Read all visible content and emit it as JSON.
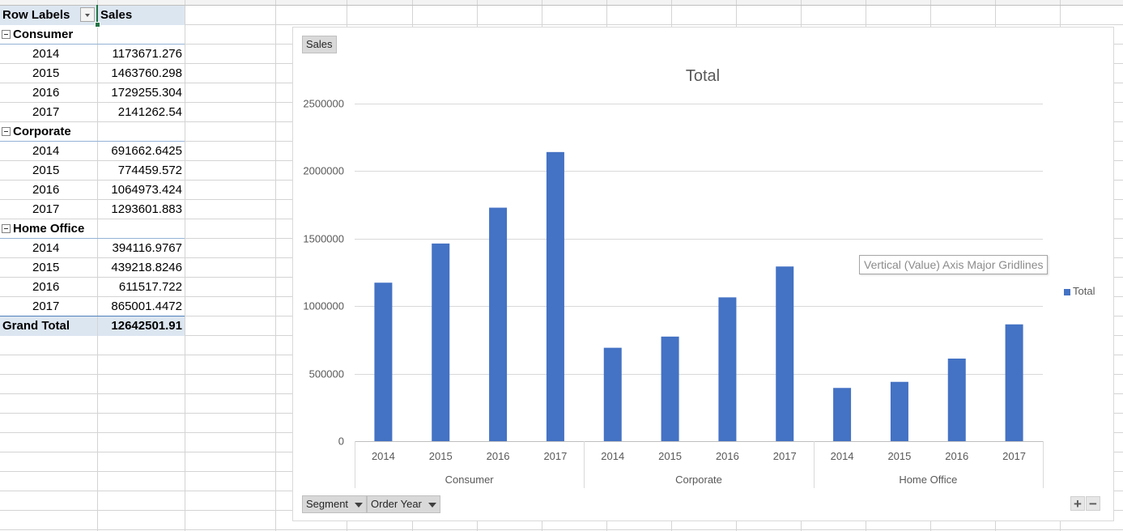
{
  "pivot": {
    "header_row_labels": "Row Labels",
    "header_sales": "Sales",
    "groups": [
      {
        "name": "Consumer",
        "rows": [
          {
            "year": "2014",
            "value": "1173671.276"
          },
          {
            "year": "2015",
            "value": "1463760.298"
          },
          {
            "year": "2016",
            "value": "1729255.304"
          },
          {
            "year": "2017",
            "value": "2141262.54"
          }
        ]
      },
      {
        "name": "Corporate",
        "rows": [
          {
            "year": "2014",
            "value": "691662.6425"
          },
          {
            "year": "2015",
            "value": "774459.572"
          },
          {
            "year": "2016",
            "value": "1064973.424"
          },
          {
            "year": "2017",
            "value": "1293601.883"
          }
        ]
      },
      {
        "name": "Home Office",
        "rows": [
          {
            "year": "2014",
            "value": "394116.9767"
          },
          {
            "year": "2015",
            "value": "439218.8246"
          },
          {
            "year": "2016",
            "value": "611517.722"
          },
          {
            "year": "2017",
            "value": "865001.4472"
          }
        ]
      }
    ],
    "grand_total_label": "Grand Total",
    "grand_total_value": "12642501.91"
  },
  "chart": {
    "value_field_button": "Sales",
    "axis_field_buttons": [
      "Segment",
      "Order Year"
    ],
    "tooltip": "Vertical (Value) Axis Major Gridlines",
    "zoom_in": "+",
    "zoom_out": "−",
    "bar_color": "#4472c4"
  },
  "chart_data": {
    "type": "bar",
    "title": "Total",
    "xlabel": "",
    "ylabel": "",
    "ylim": [
      0,
      2500000
    ],
    "yticks": [
      0,
      500000,
      1000000,
      1500000,
      2000000,
      2500000
    ],
    "grid": true,
    "legend_position": "right",
    "groups": [
      "Consumer",
      "Corporate",
      "Home Office"
    ],
    "categories": [
      "2014",
      "2015",
      "2016",
      "2017",
      "2014",
      "2015",
      "2016",
      "2017",
      "2014",
      "2015",
      "2016",
      "2017"
    ],
    "series": [
      {
        "name": "Total",
        "values": [
          1173671.276,
          1463760.298,
          1729255.304,
          2141262.54,
          691662.6425,
          774459.572,
          1064973.424,
          1293601.883,
          394116.9767,
          439218.8246,
          611517.722,
          865001.4472
        ]
      }
    ]
  }
}
